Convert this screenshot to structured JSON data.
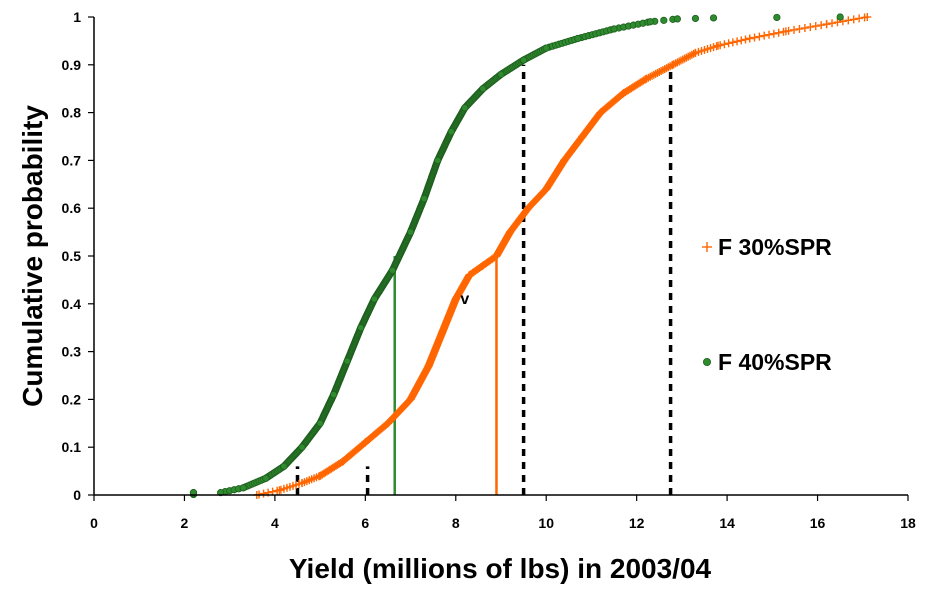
{
  "chart_data": {
    "type": "scatter",
    "title": "",
    "xlabel": "Yield (millions of lbs) in 2003/04",
    "ylabel": "Cumulative probability",
    "xlim": [
      0,
      18
    ],
    "ylim": [
      0,
      1
    ],
    "xticks": [
      0,
      2,
      4,
      6,
      8,
      10,
      12,
      14,
      16,
      18
    ],
    "xtick_labels": [
      "0",
      "2",
      "4",
      "6",
      "8",
      "10",
      "12",
      "14",
      "16",
      "18"
    ],
    "yticks": [
      0,
      0.1,
      0.2,
      0.3,
      0.4,
      0.5,
      0.6,
      0.7,
      0.8,
      0.9,
      1
    ],
    "ytick_labels": [
      "0",
      "0.1",
      "0.2",
      "0.3",
      "0.4",
      "0.5",
      "0.6",
      "0.7",
      "0.8",
      "0.9",
      "1"
    ],
    "grid": false,
    "legend_position": "right",
    "series": [
      {
        "name": "F 30%SPR",
        "marker": "plus",
        "color": "#ff6600",
        "cdf": [
          [
            3.6,
            0
          ],
          [
            4.1,
            0.01
          ],
          [
            4.6,
            0.025
          ],
          [
            5.0,
            0.04
          ],
          [
            5.5,
            0.07
          ],
          [
            6.0,
            0.11
          ],
          [
            6.5,
            0.15
          ],
          [
            7.0,
            0.2
          ],
          [
            7.4,
            0.27
          ],
          [
            7.7,
            0.34
          ],
          [
            8.0,
            0.41
          ],
          [
            8.3,
            0.46
          ],
          [
            8.6,
            0.48
          ],
          [
            8.9,
            0.5
          ],
          [
            9.2,
            0.55
          ],
          [
            9.6,
            0.6
          ],
          [
            10.0,
            0.64
          ],
          [
            10.4,
            0.7
          ],
          [
            10.8,
            0.75
          ],
          [
            11.2,
            0.8
          ],
          [
            11.7,
            0.84
          ],
          [
            12.2,
            0.87
          ],
          [
            12.8,
            0.9
          ],
          [
            13.3,
            0.925
          ],
          [
            13.8,
            0.94
          ],
          [
            14.5,
            0.955
          ],
          [
            15.3,
            0.97
          ],
          [
            16.2,
            0.985
          ],
          [
            17.1,
            1.0
          ]
        ]
      },
      {
        "name": "F 40%SPR",
        "marker": "circle",
        "color": "#2e8b2e",
        "cdf": [
          [
            2.2,
            0.005
          ],
          [
            2.8,
            0.005
          ],
          [
            3.3,
            0.015
          ],
          [
            3.8,
            0.035
          ],
          [
            4.2,
            0.06
          ],
          [
            4.6,
            0.1
          ],
          [
            5.0,
            0.15
          ],
          [
            5.3,
            0.21
          ],
          [
            5.6,
            0.28
          ],
          [
            5.9,
            0.35
          ],
          [
            6.2,
            0.41
          ],
          [
            6.6,
            0.47
          ],
          [
            7.0,
            0.55
          ],
          [
            7.3,
            0.62
          ],
          [
            7.6,
            0.7
          ],
          [
            7.9,
            0.76
          ],
          [
            8.2,
            0.81
          ],
          [
            8.6,
            0.85
          ],
          [
            9.0,
            0.88
          ],
          [
            9.5,
            0.91
          ],
          [
            10.0,
            0.935
          ],
          [
            10.7,
            0.955
          ],
          [
            11.5,
            0.975
          ],
          [
            12.3,
            0.99
          ],
          [
            12.9,
            0.996
          ],
          [
            13.7,
            0.998
          ],
          [
            16.5,
            1.0
          ]
        ]
      }
    ],
    "reference_lines": {
      "solid": [
        {
          "x": 6.65,
          "y": 0.5,
          "color": "#2e8b2e"
        },
        {
          "x": 8.9,
          "y": 0.5,
          "color": "#ff6600"
        }
      ],
      "dotted": [
        {
          "x": 4.5,
          "y": 0.06
        },
        {
          "x": 6.05,
          "y": 0.06
        },
        {
          "x": 9.5,
          "y": 0.9
        },
        {
          "x": 12.75,
          "y": 0.9
        }
      ]
    },
    "annotations": [
      {
        "text": "v",
        "x": 8.2,
        "y": 0.4
      }
    ]
  }
}
